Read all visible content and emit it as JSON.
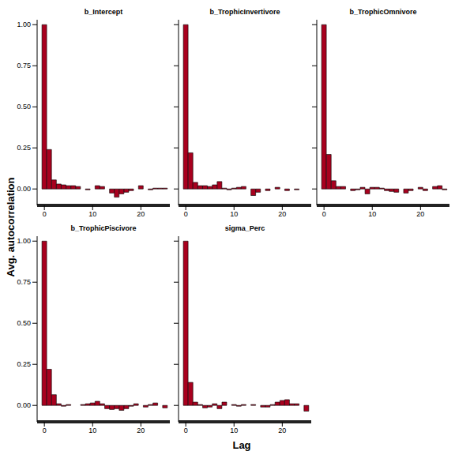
{
  "xlabel": "Lag",
  "ylabel": "Avg. autocorrelation",
  "chart_data": [
    {
      "type": "bar",
      "title": "b_Intercept",
      "color": "#a8001e",
      "x": [
        0,
        1,
        2,
        3,
        4,
        5,
        6,
        7,
        8,
        9,
        10,
        11,
        12,
        13,
        14,
        15,
        16,
        17,
        18,
        19,
        20,
        21,
        22,
        23,
        24,
        25
      ],
      "values": [
        1.0,
        0.24,
        0.055,
        0.03,
        0.025,
        0.02,
        0.02,
        0.015,
        0.0,
        -0.005,
        0.0,
        0.02,
        0.015,
        0.0,
        -0.025,
        -0.05,
        -0.03,
        -0.02,
        -0.01,
        0.0,
        0.02,
        0.0,
        -0.005,
        0.005,
        0.005,
        0.005
      ],
      "xlim": [
        -1.5,
        26
      ],
      "xticks": [
        0,
        10,
        20
      ],
      "ylim": [
        -0.1,
        1.03
      ],
      "yticks": [
        {
          "value": 0,
          "label": "0.00"
        },
        {
          "value": 0.25,
          "label": "0.25"
        },
        {
          "value": 0.5,
          "label": "0.50"
        },
        {
          "value": 0.75,
          "label": "0.75"
        },
        {
          "value": 1,
          "label": "1.00"
        }
      ]
    },
    {
      "type": "bar",
      "title": "b_TrophicInvertivore",
      "color": "#a8001e",
      "tick_labels": "x",
      "x": [
        0,
        1,
        2,
        3,
        4,
        5,
        6,
        7,
        8,
        9,
        10,
        11,
        12,
        13,
        14,
        15,
        16,
        17,
        18,
        19,
        20,
        21,
        22,
        23,
        24,
        25
      ],
      "values": [
        1.0,
        0.22,
        0.04,
        0.02,
        0.02,
        0.015,
        0.025,
        0.045,
        0.005,
        -0.005,
        0.005,
        0.01,
        0.015,
        0.0,
        -0.04,
        -0.02,
        0.0,
        -0.01,
        0.0,
        0.01,
        0.0,
        -0.01,
        0.0,
        -0.005,
        0.0,
        0.0
      ],
      "xlim": [
        -1.5,
        26
      ],
      "xticks": [
        0,
        10,
        20
      ],
      "ylim": [
        -0.1,
        1.03
      ],
      "yticks": [
        0,
        0.25,
        0.5,
        0.75,
        1
      ]
    },
    {
      "type": "bar",
      "title": "b_TrophicOmnivore",
      "color": "#a8001e",
      "tick_labels": "x",
      "x": [
        0,
        1,
        2,
        3,
        4,
        5,
        6,
        7,
        8,
        9,
        10,
        11,
        12,
        13,
        14,
        15,
        16,
        17,
        18,
        19,
        20,
        21,
        22,
        23,
        24,
        25
      ],
      "values": [
        1.0,
        0.21,
        0.05,
        0.015,
        0.015,
        0.0,
        -0.01,
        -0.005,
        0.01,
        -0.03,
        0.01,
        0.01,
        0.005,
        -0.01,
        -0.015,
        -0.02,
        0.0,
        -0.025,
        -0.01,
        0.0,
        0.01,
        -0.01,
        0.0,
        0.015,
        0.02,
        -0.005
      ],
      "xlim": [
        -1.5,
        26
      ],
      "xticks": [
        0,
        10,
        20
      ],
      "ylim": [
        -0.1,
        1.03
      ],
      "yticks": [
        0,
        0.25,
        0.5,
        0.75,
        1
      ]
    },
    {
      "type": "bar",
      "title": "b_TrophicPiscivore",
      "color": "#a8001e",
      "x": [
        0,
        1,
        2,
        3,
        4,
        5,
        6,
        7,
        8,
        9,
        10,
        11,
        12,
        13,
        14,
        15,
        16,
        17,
        18,
        19,
        20,
        21,
        22,
        23,
        24,
        25
      ],
      "values": [
        1.0,
        0.22,
        0.065,
        0.01,
        -0.005,
        0.005,
        0.0,
        0.0,
        0.005,
        0.01,
        0.015,
        0.025,
        0.01,
        -0.02,
        -0.025,
        -0.02,
        -0.03,
        -0.02,
        -0.005,
        0.01,
        0.0,
        -0.01,
        0.005,
        0.015,
        0.0,
        -0.015
      ],
      "xlim": [
        -1.5,
        26
      ],
      "xticks": [
        0,
        10,
        20
      ],
      "ylim": [
        -0.1,
        1.03
      ],
      "yticks": [
        {
          "value": 0,
          "label": "0.00"
        },
        {
          "value": 0.25,
          "label": "0.25"
        },
        {
          "value": 0.5,
          "label": "0.50"
        },
        {
          "value": 0.75,
          "label": "0.75"
        },
        {
          "value": 1,
          "label": "1.00"
        }
      ]
    },
    {
      "type": "bar",
      "title": "sigma_Perc",
      "color": "#a8001e",
      "tick_labels": "x",
      "x": [
        0,
        1,
        2,
        3,
        4,
        5,
        6,
        7,
        8,
        9,
        10,
        11,
        12,
        13,
        14,
        15,
        16,
        17,
        18,
        19,
        20,
        21,
        22,
        23,
        24,
        25
      ],
      "values": [
        1.0,
        0.14,
        0.02,
        0.005,
        -0.015,
        -0.01,
        0.01,
        -0.02,
        0.02,
        0.0,
        0.005,
        -0.005,
        0.005,
        0.0,
        0.005,
        0.0,
        -0.01,
        -0.01,
        0.005,
        0.02,
        0.03,
        0.035,
        0.01,
        0.01,
        0.0,
        -0.035
      ],
      "xlim": [
        -1.5,
        26
      ],
      "xticks": [
        0,
        10,
        20
      ],
      "ylim": [
        -0.1,
        1.03
      ],
      "yticks": [
        0,
        0.25,
        0.5,
        0.75,
        1
      ]
    }
  ]
}
